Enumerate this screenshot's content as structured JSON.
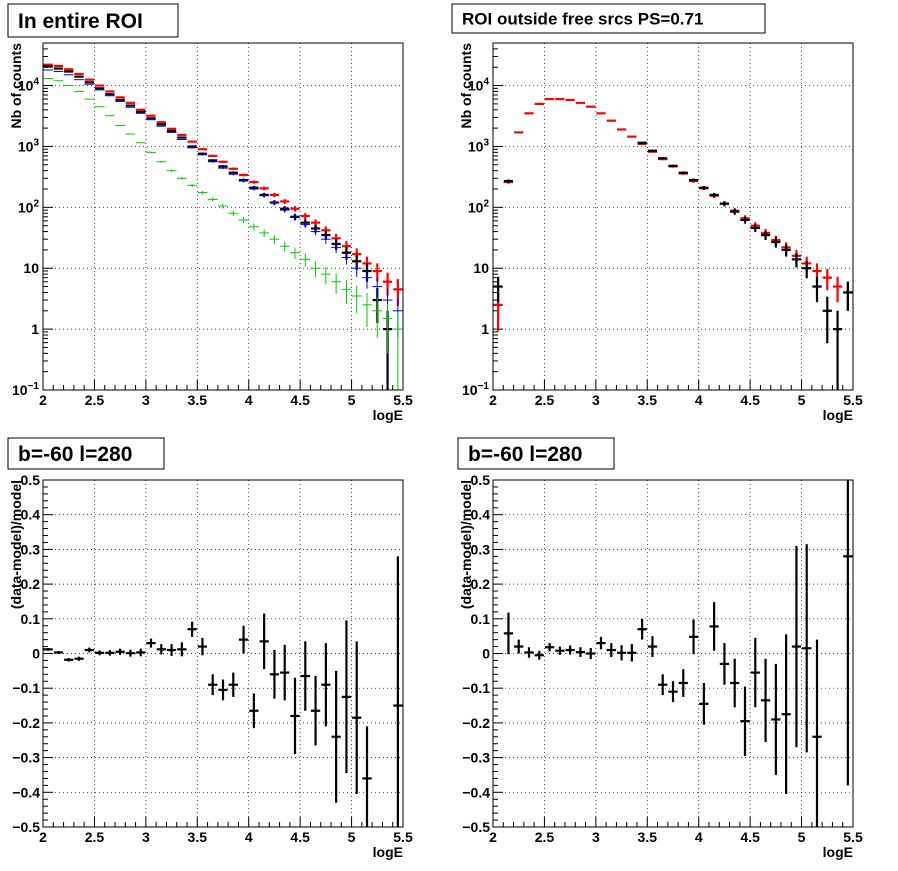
{
  "chart_data": [
    {
      "type": "scatter",
      "title": "In entire ROI",
      "xlabel": "logE",
      "ylabel": "Nb of counts",
      "xlim": [
        2,
        5.5
      ],
      "ylim": [
        0.1,
        50000
      ],
      "yscale": "log",
      "grid": true,
      "xticks": [
        "2",
        "2.5",
        "3",
        "3.5",
        "4",
        "4.5",
        "5",
        "5.5"
      ],
      "yticks": [
        {
          "v": 0.1,
          "base": "10",
          "exp": "−1"
        },
        {
          "v": 1,
          "base": "1",
          "exp": ""
        },
        {
          "v": 10,
          "base": "10",
          "exp": ""
        },
        {
          "v": 100,
          "base": "10",
          "exp": "2"
        },
        {
          "v": 1000,
          "base": "10",
          "exp": "3"
        },
        {
          "v": 10000,
          "base": "10",
          "exp": "4"
        }
      ],
      "x": [
        2.05,
        2.15,
        2.25,
        2.35,
        2.45,
        2.55,
        2.65,
        2.75,
        2.85,
        2.95,
        3.05,
        3.15,
        3.25,
        3.35,
        3.45,
        3.55,
        3.65,
        3.75,
        3.85,
        3.95,
        4.05,
        4.15,
        4.25,
        4.35,
        4.45,
        4.55,
        4.65,
        4.75,
        4.85,
        4.95,
        5.05,
        5.15,
        5.25,
        5.35,
        5.45
      ],
      "series": [
        {
          "color": "#ff0000",
          "style": "thick",
          "values": [
            22000,
            21000,
            18500,
            15500,
            12500,
            10000,
            8000,
            6400,
            5200,
            4000,
            3200,
            2500,
            1950,
            1550,
            1200,
            900,
            700,
            560,
            430,
            340,
            260,
            205,
            160,
            125,
            95,
            72,
            56,
            42,
            31,
            23,
            17,
            12,
            9,
            6,
            4.5
          ]
        },
        {
          "color": "#000000",
          "style": "thick",
          "err": true,
          "values": [
            20500,
            19000,
            17000,
            14000,
            11300,
            9000,
            7200,
            5800,
            4700,
            3700,
            2900,
            2300,
            1800,
            1400,
            1000,
            760,
            590,
            470,
            370,
            280,
            210,
            160,
            120,
            95,
            70,
            56,
            45,
            35,
            25,
            18,
            13,
            9,
            3,
            1,
            null
          ]
        },
        {
          "color": "#0000ff",
          "style": "thin",
          "values": [
            18000,
            17000,
            15000,
            12500,
            10500,
            8500,
            6800,
            5500,
            4400,
            3500,
            2750,
            2150,
            1700,
            1300,
            950,
            730,
            560,
            440,
            350,
            270,
            200,
            155,
            120,
            90,
            68,
            52,
            40,
            30,
            22,
            15,
            10,
            7,
            5,
            3,
            2
          ]
        },
        {
          "color": "#00cc00",
          "style": "thin",
          "values": [
            13000,
            12000,
            10000,
            8000,
            6000,
            4500,
            3200,
            2200,
            1600,
            1150,
            800,
            560,
            400,
            300,
            230,
            175,
            135,
            105,
            80,
            62,
            48,
            38,
            30,
            23,
            18,
            14,
            10,
            8,
            6,
            4.5,
            3.5,
            2.5,
            2,
            1.5,
            1
          ]
        }
      ]
    },
    {
      "type": "scatter",
      "title": "ROI outside free srcs PS=0.71",
      "xlabel": "logE",
      "ylabel": "Nb of counts",
      "xlim": [
        2,
        5.5
      ],
      "ylim": [
        0.1,
        50000
      ],
      "yscale": "log",
      "grid": true,
      "xticks": [
        "2",
        "2.5",
        "3",
        "3.5",
        "4",
        "4.5",
        "5",
        "5.5"
      ],
      "yticks": [
        {
          "v": 0.1,
          "base": "10",
          "exp": "−1"
        },
        {
          "v": 1,
          "base": "1",
          "exp": ""
        },
        {
          "v": 10,
          "base": "10",
          "exp": ""
        },
        {
          "v": 100,
          "base": "10",
          "exp": "2"
        },
        {
          "v": 1000,
          "base": "10",
          "exp": "3"
        },
        {
          "v": 10000,
          "base": "10",
          "exp": "4"
        }
      ],
      "x": [
        2.05,
        2.15,
        2.25,
        2.35,
        2.45,
        2.55,
        2.65,
        2.75,
        2.85,
        2.95,
        3.05,
        3.15,
        3.25,
        3.35,
        3.45,
        3.55,
        3.65,
        3.75,
        3.85,
        3.95,
        4.05,
        4.15,
        4.25,
        4.35,
        4.45,
        4.55,
        4.65,
        4.75,
        4.85,
        4.95,
        5.05,
        5.15,
        5.25,
        5.35,
        5.45
      ],
      "series": [
        {
          "color": "#ff0000",
          "style": "thick",
          "values": [
            2.5,
            260,
            1700,
            3500,
            5000,
            6000,
            6000,
            5800,
            5200,
            4500,
            3500,
            2650,
            1900,
            1450,
            1100,
            820,
            620,
            470,
            360,
            270,
            205,
            155,
            115,
            88,
            66,
            50,
            38,
            29,
            22,
            16,
            12,
            9,
            7,
            5,
            4
          ]
        },
        {
          "color": "#000000",
          "style": "thick",
          "err": true,
          "values": [
            5,
            270,
            null,
            null,
            null,
            null,
            null,
            null,
            null,
            null,
            null,
            null,
            null,
            null,
            1150,
            850,
            640,
            480,
            370,
            280,
            210,
            160,
            115,
            85,
            62,
            46,
            35,
            27,
            20,
            14,
            10,
            5,
            2,
            1,
            4
          ]
        }
      ]
    },
    {
      "type": "scatter",
      "title": "b=-60 l=280",
      "xlabel": "logE",
      "ylabel": "(data-model)/model",
      "xlim": [
        2,
        5.5
      ],
      "ylim": [
        -0.5,
        0.5
      ],
      "yscale": "linear",
      "grid": true,
      "xticks": [
        "2",
        "2.5",
        "3",
        "3.5",
        "4",
        "4.5",
        "5",
        "5.5"
      ],
      "yticks": [
        {
          "v": -0.5,
          "label": "−0.5"
        },
        {
          "v": -0.4,
          "label": "−0.4"
        },
        {
          "v": -0.3,
          "label": "−0.3"
        },
        {
          "v": -0.2,
          "label": "−0.2"
        },
        {
          "v": -0.1,
          "label": "−0.1"
        },
        {
          "v": 0,
          "label": "0"
        },
        {
          "v": 0.1,
          "label": "0.1"
        },
        {
          "v": 0.2,
          "label": "0.2"
        },
        {
          "v": 0.3,
          "label": "0.3"
        },
        {
          "v": 0.4,
          "label": "0.4"
        },
        {
          "v": 0.5,
          "label": "0.5"
        }
      ],
      "x": [
        2.05,
        2.15,
        2.25,
        2.35,
        2.45,
        2.55,
        2.65,
        2.75,
        2.85,
        2.95,
        3.05,
        3.15,
        3.25,
        3.35,
        3.45,
        3.55,
        3.65,
        3.75,
        3.85,
        3.95,
        4.05,
        4.15,
        4.25,
        4.35,
        4.45,
        4.55,
        4.65,
        4.75,
        4.85,
        4.95,
        5.05,
        5.15,
        5.45
      ],
      "series": [
        {
          "color": "#000000",
          "style": "thick",
          "err": true,
          "values": [
            0.012,
            0.003,
            -0.018,
            -0.015,
            0.01,
            0.002,
            0.002,
            0.005,
            0.001,
            0.003,
            0.03,
            0.012,
            0.01,
            0.012,
            0.07,
            0.02,
            -0.09,
            -0.105,
            -0.09,
            0.04,
            -0.165,
            0.035,
            -0.06,
            -0.055,
            -0.18,
            -0.065,
            -0.165,
            -0.09,
            -0.24,
            -0.125,
            -0.185,
            -0.36,
            -0.15
          ],
          "errors": [
            0.004,
            0.004,
            0.005,
            0.006,
            0.007,
            0.007,
            0.008,
            0.009,
            0.01,
            0.011,
            0.013,
            0.015,
            0.017,
            0.02,
            0.022,
            0.025,
            0.03,
            0.03,
            0.035,
            0.04,
            0.05,
            0.08,
            0.07,
            0.08,
            0.11,
            0.1,
            0.1,
            0.12,
            0.19,
            0.22,
            0.22,
            0.15,
            0.43
          ]
        }
      ]
    },
    {
      "type": "scatter",
      "title": "b=-60 l=280",
      "xlabel": "logE",
      "ylabel": "(data-model)/model",
      "xlim": [
        2,
        5.5
      ],
      "ylim": [
        -0.5,
        0.5
      ],
      "yscale": "linear",
      "grid": true,
      "xticks": [
        "2",
        "2.5",
        "3",
        "3.5",
        "4",
        "4.5",
        "5",
        "5.5"
      ],
      "yticks": [
        {
          "v": -0.5,
          "label": "−0.5"
        },
        {
          "v": -0.4,
          "label": "−0.4"
        },
        {
          "v": -0.3,
          "label": "−0.3"
        },
        {
          "v": -0.2,
          "label": "−0.2"
        },
        {
          "v": -0.1,
          "label": "−0.1"
        },
        {
          "v": 0,
          "label": "0"
        },
        {
          "v": 0.1,
          "label": "0.1"
        },
        {
          "v": 0.2,
          "label": "0.2"
        },
        {
          "v": 0.3,
          "label": "0.3"
        },
        {
          "v": 0.4,
          "label": "0.4"
        },
        {
          "v": 0.5,
          "label": "0.5"
        }
      ],
      "x": [
        2.15,
        2.25,
        2.35,
        2.45,
        2.55,
        2.65,
        2.75,
        2.85,
        2.95,
        3.05,
        3.15,
        3.25,
        3.35,
        3.45,
        3.55,
        3.65,
        3.75,
        3.85,
        3.95,
        4.05,
        4.15,
        4.25,
        4.35,
        4.45,
        4.55,
        4.65,
        4.75,
        4.85,
        4.95,
        5.05,
        5.15,
        5.45
      ],
      "series": [
        {
          "color": "#000000",
          "style": "thick",
          "err": true,
          "values": [
            0.058,
            0.02,
            0.003,
            -0.005,
            0.018,
            0.008,
            0.01,
            0.004,
            0.0,
            0.03,
            0.01,
            0.002,
            0.002,
            0.07,
            0.02,
            -0.09,
            -0.11,
            -0.085,
            0.048,
            -0.145,
            0.078,
            -0.03,
            -0.085,
            -0.195,
            -0.055,
            -0.135,
            -0.19,
            -0.175,
            0.02,
            0.015,
            -0.24,
            0.28
          ],
          "errors": [
            0.06,
            0.02,
            0.015,
            0.013,
            0.012,
            0.012,
            0.013,
            0.014,
            0.016,
            0.018,
            0.02,
            0.022,
            0.025,
            0.03,
            0.03,
            0.03,
            0.03,
            0.04,
            0.05,
            0.06,
            0.07,
            0.06,
            0.07,
            0.1,
            0.1,
            0.12,
            0.16,
            0.23,
            0.29,
            0.3,
            0.28,
            0.66
          ]
        }
      ]
    }
  ]
}
